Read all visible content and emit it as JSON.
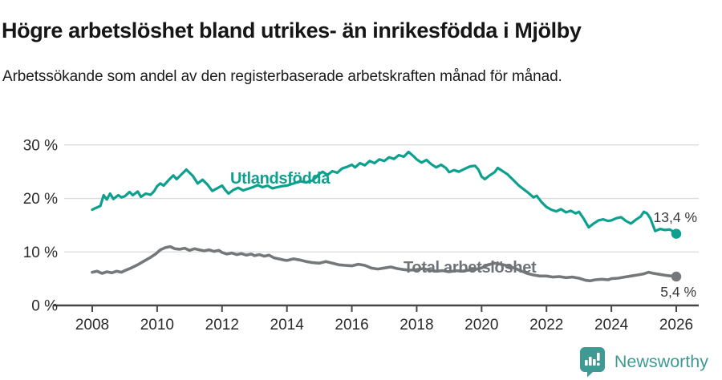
{
  "title": "Högre arbetslöshet bland utrikes- än inrikesfödda i Mjölby",
  "subtitle": "Arbetssökande som andel av den registerbaserade arbetskraften månad för månad.",
  "footer": {
    "brand": "Newsworthy"
  },
  "colors": {
    "grid": "#dbdbdb",
    "axis": "#474747",
    "tick_text": "#2b2b2b",
    "value_text": "#3a3a3a",
    "brand_teal": "#3e9a93"
  },
  "chart_data": {
    "type": "line",
    "title": "Högre arbetslöshet bland utrikes- än inrikesfödda i Mjölby",
    "subtitle": "Arbetssökande som andel av den registerbaserade arbetskraften månad för månad.",
    "unit": "%",
    "grid": "horizontal",
    "x_axis": {
      "range": [
        2007.6,
        2026.7
      ],
      "ticks": [
        2008,
        2010,
        2012,
        2014,
        2016,
        2018,
        2020,
        2022,
        2024,
        2026
      ]
    },
    "y_axis": {
      "range": [
        0,
        31
      ],
      "ticks": [
        {
          "value": 0,
          "label": "0 %"
        },
        {
          "value": 10,
          "label": "10 %"
        },
        {
          "value": 20,
          "label": "20 %"
        },
        {
          "value": 30,
          "label": "30 %"
        }
      ]
    },
    "series": [
      {
        "name": "Utlandsfödda",
        "color": "#0ca08f",
        "label_color": "#0ca08f",
        "end_label": "13,4 %",
        "end_value": 13.4,
        "x": [
          2008.0,
          2008.1,
          2008.25,
          2008.35,
          2008.45,
          2008.55,
          2008.65,
          2008.8,
          2008.9,
          2009.0,
          2009.15,
          2009.25,
          2009.4,
          2009.5,
          2009.65,
          2009.8,
          2009.9,
          2010.0,
          2010.1,
          2010.2,
          2010.35,
          2010.5,
          2010.6,
          2010.75,
          2010.9,
          2011.0,
          2011.1,
          2011.25,
          2011.4,
          2011.55,
          2011.7,
          2011.85,
          2012.0,
          2012.1,
          2012.2,
          2012.35,
          2012.5,
          2012.65,
          2012.8,
          2012.95,
          2013.1,
          2013.25,
          2013.4,
          2013.55,
          2013.7,
          2013.85,
          2014.0,
          2014.2,
          2014.4,
          2014.6,
          2014.8,
          2015.0,
          2015.1,
          2015.25,
          2015.4,
          2015.55,
          2015.7,
          2015.85,
          2016.0,
          2016.1,
          2016.25,
          2016.4,
          2016.55,
          2016.7,
          2016.85,
          2017.0,
          2017.15,
          2017.3,
          2017.45,
          2017.6,
          2017.75,
          2017.9,
          2018.0,
          2018.15,
          2018.3,
          2018.45,
          2018.6,
          2018.75,
          2018.9,
          2019.0,
          2019.15,
          2019.3,
          2019.5,
          2019.65,
          2019.8,
          2019.9,
          2020.0,
          2020.1,
          2020.25,
          2020.4,
          2020.5,
          2020.65,
          2020.8,
          2021.0,
          2021.15,
          2021.3,
          2021.45,
          2021.6,
          2021.7,
          2021.85,
          2022.0,
          2022.15,
          2022.3,
          2022.45,
          2022.6,
          2022.75,
          2022.9,
          2023.0,
          2023.15,
          2023.3,
          2023.45,
          2023.6,
          2023.75,
          2023.9,
          2024.0,
          2024.15,
          2024.3,
          2024.45,
          2024.6,
          2024.75,
          2024.9,
          2025.0,
          2025.1,
          2025.2,
          2025.35,
          2025.5,
          2025.65,
          2025.8,
          2026.0
        ],
        "values": [
          17.9,
          18.2,
          18.6,
          20.6,
          19.8,
          20.9,
          19.9,
          20.6,
          20.2,
          20.4,
          21.2,
          20.6,
          21.3,
          20.3,
          20.9,
          20.7,
          21.3,
          22.3,
          22.8,
          22.4,
          23.4,
          24.3,
          23.6,
          24.5,
          25.4,
          24.8,
          24.2,
          22.8,
          23.5,
          22.6,
          21.4,
          21.9,
          22.4,
          21.6,
          20.9,
          21.6,
          22.0,
          21.5,
          21.8,
          22.1,
          22.5,
          22.1,
          22.4,
          21.9,
          22.1,
          22.3,
          22.4,
          22.8,
          23.2,
          23.0,
          23.4,
          24.6,
          25.0,
          24.4,
          25.1,
          24.8,
          25.6,
          25.9,
          26.3,
          25.8,
          26.6,
          26.2,
          27.0,
          26.6,
          27.3,
          27.0,
          27.7,
          27.4,
          28.1,
          27.8,
          28.7,
          27.9,
          27.3,
          26.7,
          27.2,
          26.4,
          25.8,
          26.3,
          25.7,
          24.9,
          25.3,
          25.0,
          25.6,
          26.0,
          26.1,
          25.4,
          24.1,
          23.6,
          24.3,
          24.9,
          25.7,
          25.1,
          24.5,
          23.3,
          22.4,
          21.7,
          21.0,
          20.2,
          20.5,
          19.3,
          18.4,
          17.9,
          17.6,
          18.0,
          17.4,
          17.7,
          17.2,
          17.5,
          16.2,
          14.6,
          15.3,
          15.9,
          16.1,
          15.8,
          15.9,
          16.3,
          16.5,
          15.8,
          15.3,
          16.0,
          16.6,
          17.5,
          17.2,
          16.3,
          13.9,
          14.3,
          14.1,
          14.2,
          13.4
        ]
      },
      {
        "name": "Total arbetslöshet",
        "color": "#75787b",
        "label_color": "#6f7276",
        "end_label": "5,4 %",
        "end_value": 5.4,
        "x": [
          2008.0,
          2008.15,
          2008.3,
          2008.45,
          2008.6,
          2008.75,
          2008.9,
          2009.0,
          2009.2,
          2009.4,
          2009.6,
          2009.8,
          2009.95,
          2010.1,
          2010.25,
          2010.4,
          2010.55,
          2010.7,
          2010.85,
          2011.0,
          2011.15,
          2011.3,
          2011.45,
          2011.6,
          2011.75,
          2011.9,
          2012.0,
          2012.15,
          2012.3,
          2012.45,
          2012.6,
          2012.75,
          2012.9,
          2013.0,
          2013.15,
          2013.3,
          2013.45,
          2013.6,
          2013.75,
          2013.9,
          2014.0,
          2014.2,
          2014.4,
          2014.6,
          2014.8,
          2015.0,
          2015.2,
          2015.4,
          2015.6,
          2015.8,
          2016.0,
          2016.2,
          2016.4,
          2016.6,
          2016.8,
          2017.0,
          2017.2,
          2017.4,
          2017.6,
          2017.8,
          2018.0,
          2018.2,
          2018.4,
          2018.6,
          2018.8,
          2019.0,
          2019.2,
          2019.4,
          2019.6,
          2019.8,
          2020.0,
          2020.2,
          2020.4,
          2020.6,
          2020.8,
          2021.0,
          2021.2,
          2021.4,
          2021.6,
          2021.8,
          2022.0,
          2022.2,
          2022.4,
          2022.6,
          2022.8,
          2023.0,
          2023.2,
          2023.35,
          2023.5,
          2023.7,
          2023.9,
          2024.0,
          2024.2,
          2024.4,
          2024.6,
          2024.8,
          2025.0,
          2025.15,
          2025.3,
          2025.5,
          2025.7,
          2025.85,
          2026.0
        ],
        "values": [
          6.2,
          6.4,
          6.0,
          6.3,
          6.1,
          6.4,
          6.2,
          6.5,
          7.0,
          7.6,
          8.3,
          9.0,
          9.6,
          10.4,
          10.8,
          11.0,
          10.6,
          10.5,
          10.7,
          10.3,
          10.6,
          10.4,
          10.2,
          10.4,
          10.1,
          10.3,
          9.9,
          9.6,
          9.8,
          9.5,
          9.7,
          9.4,
          9.6,
          9.3,
          9.5,
          9.2,
          9.4,
          8.9,
          8.7,
          8.5,
          8.4,
          8.7,
          8.5,
          8.2,
          8.0,
          7.9,
          8.2,
          7.9,
          7.6,
          7.5,
          7.4,
          7.7,
          7.5,
          7.0,
          6.8,
          7.0,
          7.2,
          6.9,
          6.7,
          6.6,
          6.7,
          6.9,
          6.6,
          6.4,
          6.5,
          6.3,
          6.5,
          6.4,
          6.6,
          6.7,
          7.0,
          7.6,
          7.9,
          7.7,
          7.4,
          7.0,
          6.5,
          6.0,
          5.7,
          5.5,
          5.5,
          5.3,
          5.4,
          5.2,
          5.3,
          5.1,
          4.7,
          4.6,
          4.8,
          4.9,
          4.8,
          5.0,
          5.1,
          5.3,
          5.5,
          5.7,
          5.9,
          6.2,
          6.0,
          5.8,
          5.6,
          5.5,
          5.4
        ]
      }
    ]
  }
}
